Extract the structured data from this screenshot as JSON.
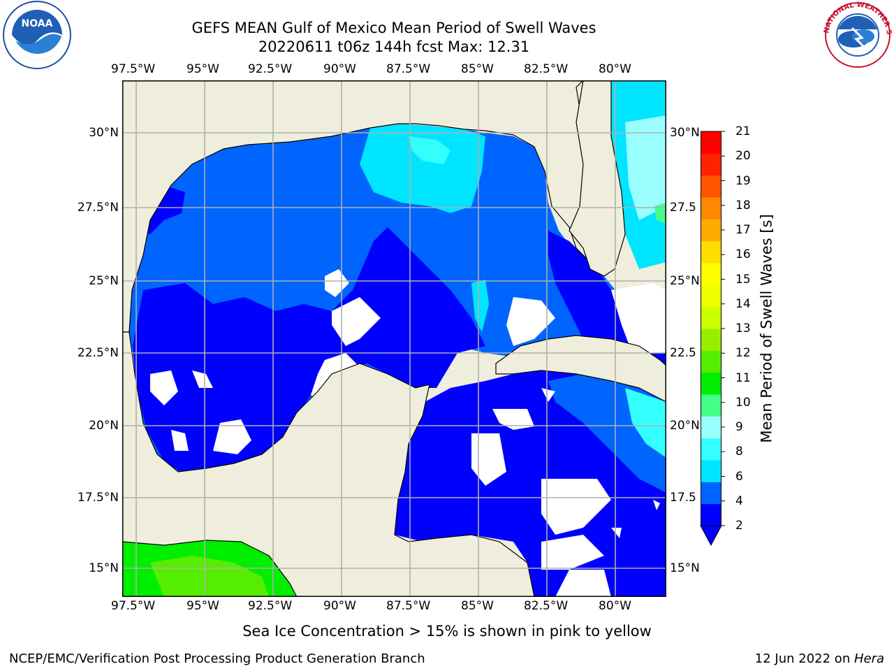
{
  "header": {
    "title_line1": "GEFS MEAN Gulf of Mexico Mean Period of Swell Waves",
    "title_line2": "20220611 t06z 144h fcst   Max: 12.31"
  },
  "logos": {
    "left": "noaa-logo",
    "right": "national-weather-service-logo",
    "right_text": "NATIONAL WEATHER SERVICE"
  },
  "map": {
    "lon_labels": [
      "97.5°W",
      "95°W",
      "92.5°W",
      "90°W",
      "87.5°W",
      "85°W",
      "82.5°W",
      "80°W"
    ],
    "lat_labels_left": [
      "30°N",
      "27.5°N",
      "25°N",
      "22.5°N",
      "20°N",
      "17.5°N",
      "15°N"
    ],
    "lat_labels_right": [
      "30°N",
      "27.5",
      "25°N",
      "22.5",
      "20°N",
      "17.5",
      "15°N"
    ],
    "colors": {
      "land": "#efeedc",
      "no_data": "#ffffff",
      "grid": "#b0b0b0",
      "coast": "#000000"
    }
  },
  "colorbar": {
    "label": "Mean Period of Swell Waves [s]",
    "ticks": [
      "21",
      "20",
      "19",
      "18",
      "17",
      "16",
      "15",
      "14",
      "13",
      "12",
      "11",
      "10",
      "9",
      "8",
      "6",
      "4",
      "2"
    ],
    "colors_bottom_to_top": [
      "#0000ff",
      "#0064ff",
      "#00e5ff",
      "#33ffff",
      "#99ffff",
      "#44ff88",
      "#00ee00",
      "#55ee00",
      "#99ee00",
      "#ccff00",
      "#eeff00",
      "#ffff00",
      "#ffdd00",
      "#ffaa00",
      "#ff8800",
      "#ff5500",
      "#ff2200",
      "#ff0000"
    ]
  },
  "note": "Sea Ice Concentration > 15% is shown in pink to yellow",
  "footer": {
    "left": "NCEP/EMC/Verification Post Processing Product Generation Branch",
    "right_prefix": "12 Jun 2022 on ",
    "right_host": "Hera"
  }
}
